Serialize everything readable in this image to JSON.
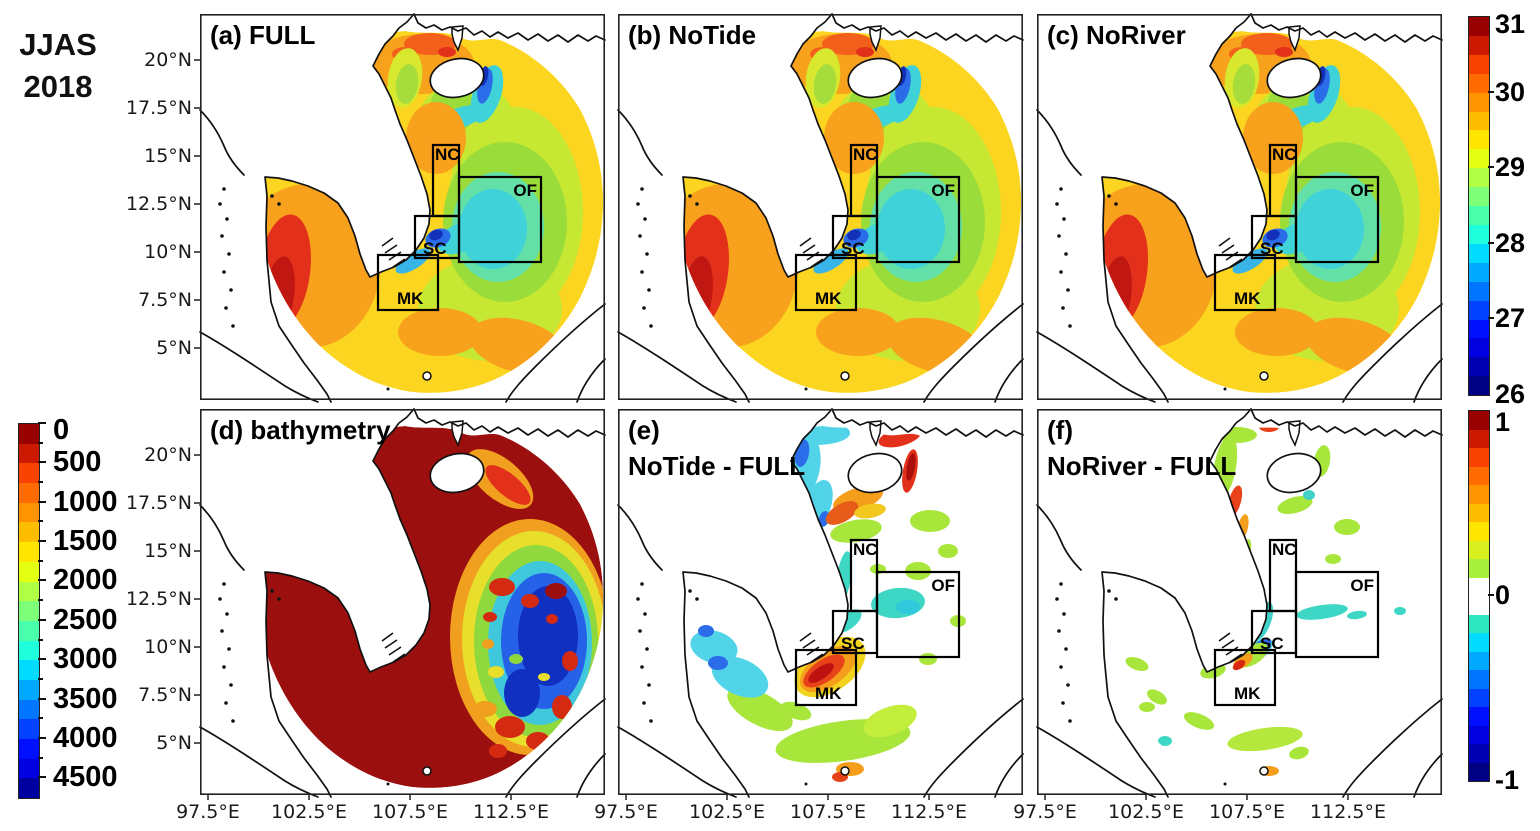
{
  "figure": {
    "period": "JJAS",
    "year": "2018"
  },
  "panels": [
    {
      "id": "a",
      "label": "(a) FULL",
      "kind": "sst",
      "show_boxes": true
    },
    {
      "id": "b",
      "label": "(b) NoTide",
      "kind": "sst",
      "show_boxes": true
    },
    {
      "id": "c",
      "label": "(c) NoRiver",
      "kind": "sst",
      "show_boxes": true
    },
    {
      "id": "d",
      "label": "(d) bathymetry",
      "kind": "bathymetry",
      "show_boxes": false
    },
    {
      "id": "e",
      "label": "(e)",
      "label2": "NoTide - FULL",
      "kind": "anomaly_tide",
      "show_boxes": true
    },
    {
      "id": "f",
      "label": "(f)",
      "label2": "NoRiver - FULL",
      "kind": "anomaly_river",
      "show_boxes": true
    }
  ],
  "axes": {
    "lat_ticks": [
      "20°N",
      "17.5°N",
      "15°N",
      "12.5°N",
      "10°N",
      "7.5°N",
      "5°N"
    ],
    "lon_ticks": [
      "97.5°E",
      "102.5°E",
      "107.5°E",
      "112.5°E"
    ]
  },
  "region_boxes": [
    {
      "label": "NC"
    },
    {
      "label": "OF"
    },
    {
      "label": "SC"
    },
    {
      "label": "MK"
    }
  ],
  "colorbars": {
    "sst": {
      "min": 26,
      "max": 31,
      "tick_labels": [
        "31",
        "30",
        "29",
        "28",
        "27",
        "26"
      ],
      "colors_low_to_high": [
        "#000085",
        "#0000B3",
        "#0000E0",
        "#0010FF",
        "#0042FF",
        "#0075FF",
        "#00A8FF",
        "#00DBFF",
        "#1FFFDB",
        "#4AFFAB",
        "#7DFF78",
        "#B0FF45",
        "#E3FF12",
        "#FFE600",
        "#FFBD00",
        "#FF9400",
        "#FF6B00",
        "#F84200",
        "#CC1A00",
        "#990000"
      ]
    },
    "bathymetry": {
      "min": 0,
      "max": 4750,
      "tick_labels": [
        "0",
        "500",
        "1000",
        "1500",
        "2000",
        "2500",
        "3000",
        "3500",
        "4000",
        "4500"
      ],
      "colors_shallow_to_deep": [
        "#990000",
        "#CC1A00",
        "#F84200",
        "#FF6B00",
        "#FF9400",
        "#FFBD00",
        "#FFE600",
        "#E3FF12",
        "#B0FF45",
        "#7DFF78",
        "#4AFFAB",
        "#1FFFDB",
        "#00DBFF",
        "#00A8FF",
        "#0075FF",
        "#0042FF",
        "#0010FF",
        "#0000E0",
        "#0000A0"
      ]
    },
    "anomaly": {
      "min": -1,
      "max": 1,
      "tick_labels": [
        "1",
        "0",
        "-1"
      ],
      "colors_low_to_high": [
        "#000085",
        "#0000B3",
        "#0000E0",
        "#0010FF",
        "#0042FF",
        "#0075FF",
        "#00A8FF",
        "#00DBFF",
        "#30E8C0",
        "#FFFFFF",
        "#FFFFFF",
        "#A8F03C",
        "#D8F020",
        "#FFE600",
        "#FFBD00",
        "#FF9400",
        "#FF6B00",
        "#F84200",
        "#CC1A00",
        "#990000"
      ]
    }
  },
  "chart_data": [
    {
      "type": "heatmap",
      "panel_label": "(a) FULL",
      "colorbar": "right-top",
      "value_range": [
        26,
        31
      ],
      "x_ticks": [
        "97.5°E",
        "102.5°E",
        "107.5°E",
        "112.5°E"
      ],
      "y_ticks": [
        "20°N",
        "17.5°N",
        "15°N",
        "12.5°N",
        "10°N",
        "7.5°N",
        "5°N"
      ],
      "regions": [
        "NC",
        "OF",
        "SC",
        "MK"
      ],
      "notable_values": {
        "gulf_of_thailand_west_coast": "30.5-31",
        "SC_coastal_minimum": "26-27",
        "OF_box_interior": "28",
        "hainan_southeast_coast": "26.5-28",
        "broad_background": "29-30"
      }
    },
    {
      "type": "heatmap",
      "panel_label": "(b) NoTide",
      "colorbar": "right-top",
      "value_range": [
        26,
        31
      ],
      "regions": [
        "NC",
        "OF",
        "SC",
        "MK"
      ],
      "notable_values": {
        "pattern": "nearly identical to (a)"
      }
    },
    {
      "type": "heatmap",
      "panel_label": "(c) NoRiver",
      "colorbar": "right-top",
      "value_range": [
        26,
        31
      ],
      "regions": [
        "NC",
        "OF",
        "SC",
        "MK"
      ],
      "notable_values": {
        "pattern": "nearly identical to (a)"
      }
    },
    {
      "type": "heatmap",
      "panel_label": "(d) bathymetry",
      "colorbar": "left",
      "value_range": [
        0,
        4750
      ],
      "notable_values": {
        "shelf_gulfs_tonkin_thailand_sunda": "0-250",
        "deep_basin_east": "3500-4500"
      }
    },
    {
      "type": "heatmap",
      "panel_label": "(e) NoTide - FULL",
      "colorbar": "right-bottom",
      "value_range": [
        -1,
        1
      ],
      "regions": [
        "NC",
        "OF",
        "SC",
        "MK"
      ],
      "notable_values": {
        "mekong_shelf_MK": "+0.6 to +1",
        "hainan_east_coast": "+0.8 to +1",
        "gulf_of_tonkin_northwest": "-0.3 to -0.6",
        "gulf_of_thailand_patches": "-0.2 to -0.5",
        "most_of_domain": "0 (white)"
      }
    },
    {
      "type": "heatmap",
      "panel_label": "(f) NoRiver - FULL",
      "colorbar": "right-bottom",
      "value_range": [
        -1,
        1
      ],
      "regions": [
        "NC",
        "OF",
        "SC",
        "MK"
      ],
      "notable_values": {
        "coastal_streaks": "±0.2 to ±0.5",
        "mekong_coast_band": "+0.5",
        "most_of_domain": "0 (white)"
      }
    }
  ]
}
